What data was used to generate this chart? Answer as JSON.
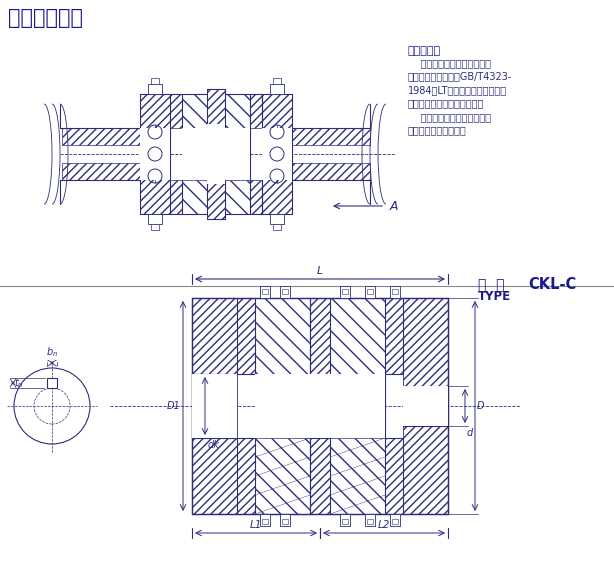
{
  "title_top": "安装参考范例",
  "install_req_title": "安装要求：",
  "install_req_text": "    此型号离合器对应联轴器许\n用补偿量参考国标（GB/T4323-\n1984）LT型联轴器标准，并与离\n合器扭矩组成一一对应关系。\n    安装时两轴的径向位移和角\n位移要符合国标要求。",
  "type_label_cn": "型  号",
  "type_label_en": "TYPE",
  "type_value": "CKL-C",
  "bg_color": "#ffffff",
  "line_color": "#2d2d7a",
  "text_color": "#2d2d7a",
  "title_color": "#1a1a8c"
}
